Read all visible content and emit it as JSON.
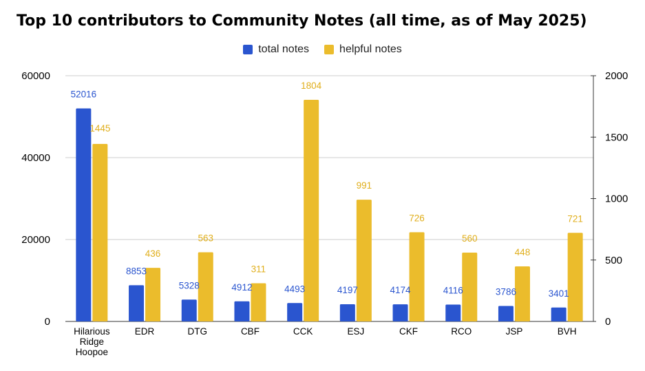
{
  "chart_data": {
    "type": "bar",
    "title": "Top 10 contributors to Community Notes (all time, as of May 2025)",
    "categories": [
      [
        "Hilarious",
        "Ridge",
        "Hoopoe"
      ],
      [
        "EDR"
      ],
      [
        "DTG"
      ],
      [
        "CBF"
      ],
      [
        "CCK"
      ],
      [
        "ESJ"
      ],
      [
        "CKF"
      ],
      [
        "RCO"
      ],
      [
        "JSP"
      ],
      [
        "BVH"
      ]
    ],
    "series": [
      {
        "name": "total notes",
        "color": "#2a55cf",
        "axis": "left",
        "values": [
          52016,
          8853,
          5328,
          4912,
          4493,
          4197,
          4174,
          4116,
          3786,
          3401
        ],
        "labels": [
          "52016",
          "8853",
          "5328",
          "4912",
          "4493",
          "4197",
          "4174",
          "4116",
          "3786",
          "3401"
        ]
      },
      {
        "name": "helpful notes",
        "color": "#ebbc2c",
        "axis": "right",
        "values": [
          1445,
          436,
          563,
          311,
          1804,
          991,
          726,
          560,
          448,
          721
        ],
        "labels": [
          "1445",
          "436",
          "563",
          "311",
          "1804",
          "991",
          "726",
          "560",
          "448",
          "721"
        ]
      }
    ],
    "y_left": {
      "range": [
        0,
        60000
      ],
      "ticks": [
        "0",
        "20000",
        "40000",
        "60000"
      ],
      "tick_values": [
        0,
        20000,
        40000,
        60000
      ]
    },
    "y_right": {
      "range": [
        0,
        2000
      ],
      "ticks": [
        "0",
        "500",
        "1000",
        "1500",
        "2000"
      ],
      "tick_values": [
        0,
        500,
        1000,
        1500,
        2000
      ]
    },
    "legend_position": "top",
    "grid": true
  }
}
